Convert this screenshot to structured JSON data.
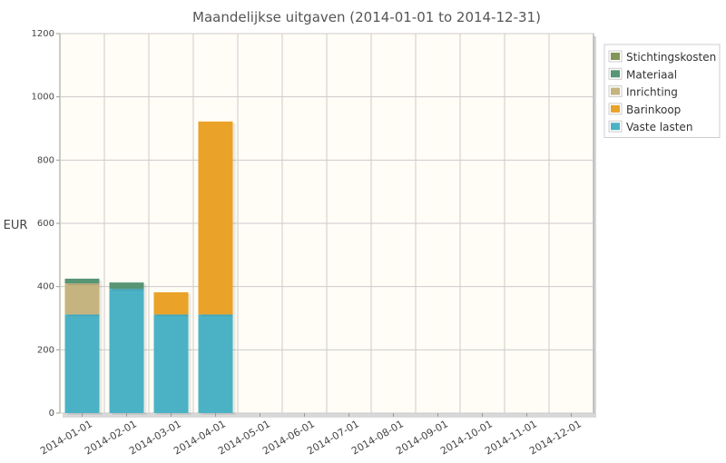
{
  "chart_data": {
    "type": "bar",
    "stacked": true,
    "title": "Maandelijkse uitgaven (2014-01-01 to 2014-12-31)",
    "xlabel": "",
    "ylabel": "EUR",
    "ylim": [
      0,
      1200
    ],
    "yticks": [
      "0",
      "200",
      "400",
      "600",
      "800",
      "1000",
      "1200"
    ],
    "grid": true,
    "legend_position": "top-right",
    "categories": [
      "2014-01-01",
      "2014-02-01",
      "2014-03-01",
      "2014-04-01",
      "2014-05-01",
      "2014-06-01",
      "2014-07-01",
      "2014-08-01",
      "2014-09-01",
      "2014-10-01",
      "2014-11-01",
      "2014-12-01"
    ],
    "series": [
      {
        "name": "Vaste lasten",
        "color": "#4bb2c5",
        "values": [
          312,
          393,
          312,
          312,
          0,
          0,
          0,
          0,
          0,
          0,
          0,
          0
        ]
      },
      {
        "name": "Barinkoop",
        "color": "#eaa228",
        "values": [
          0,
          0,
          70,
          610,
          0,
          0,
          0,
          0,
          0,
          0,
          0,
          0
        ]
      },
      {
        "name": "Inrichting",
        "color": "#c5b47f",
        "values": [
          98,
          0,
          0,
          0,
          0,
          0,
          0,
          0,
          0,
          0,
          0,
          0
        ]
      },
      {
        "name": "Materiaal",
        "color": "#579575",
        "values": [
          15,
          20,
          0,
          0,
          0,
          0,
          0,
          0,
          0,
          0,
          0,
          0
        ]
      },
      {
        "name": "Stichtingskosten",
        "color": "#839557",
        "values": [
          0,
          0,
          0,
          0,
          0,
          0,
          0,
          0,
          0,
          0,
          0,
          0
        ]
      }
    ]
  }
}
